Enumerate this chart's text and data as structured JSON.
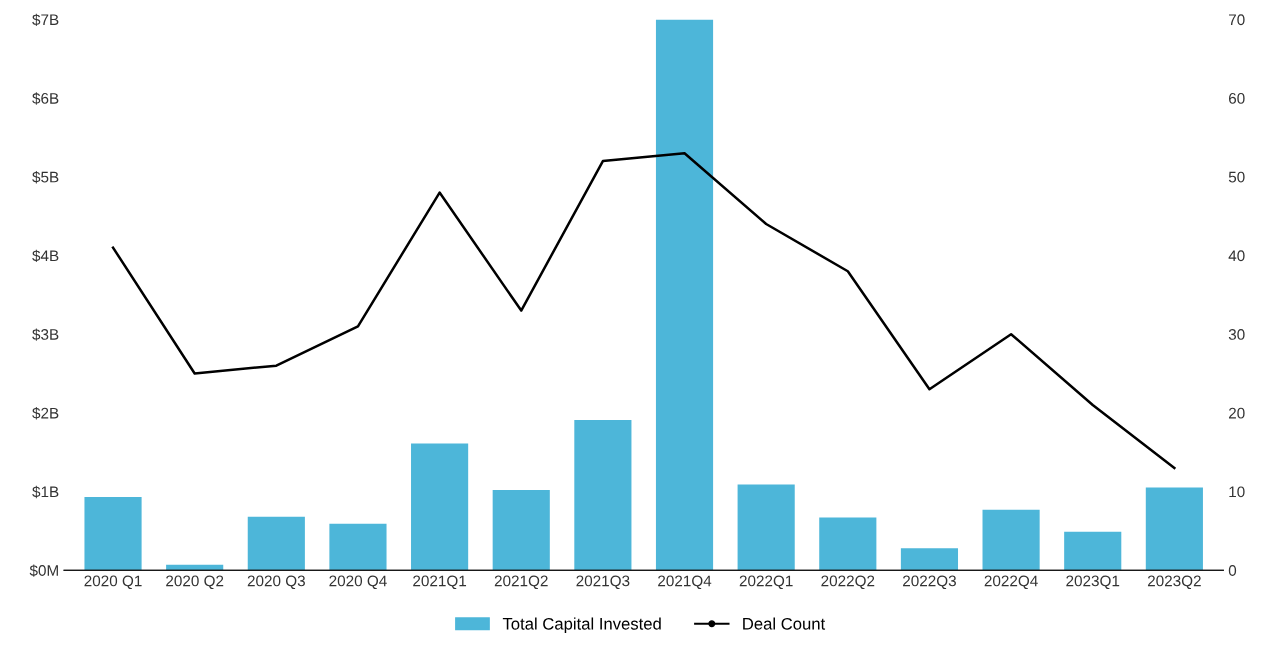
{
  "chart_data": {
    "type": "bar",
    "categories": [
      "2020 Q1",
      "2020 Q2",
      "2020 Q3",
      "2020 Q4",
      "2021Q1",
      "2021Q2",
      "2021Q3",
      "2021Q4",
      "2022Q1",
      "2022Q2",
      "2022Q3",
      "2022Q4",
      "2023Q1",
      "2023Q2"
    ],
    "series": [
      {
        "name": "Total Capital Invested",
        "color": "#4db6d9",
        "values": [
          0.93,
          0.07,
          0.68,
          0.59,
          1.61,
          1.02,
          1.91,
          7.0,
          1.09,
          0.67,
          0.28,
          0.77,
          0.49,
          1.05
        ]
      },
      {
        "name": "Deal Count",
        "type": "line",
        "axis": "y2",
        "color": "#000000",
        "values": [
          41,
          25,
          26,
          31,
          48,
          33,
          52,
          53,
          44,
          38,
          23,
          30,
          21,
          13
        ]
      }
    ],
    "ylim": [
      0,
      7
    ],
    "yticks": [
      {
        "value": 0,
        "label": "$0M"
      },
      {
        "value": 1,
        "label": "$1B"
      },
      {
        "value": 2,
        "label": "$2B"
      },
      {
        "value": 3,
        "label": "$3B"
      },
      {
        "value": 4,
        "label": "$4B"
      },
      {
        "value": 5,
        "label": "$5B"
      },
      {
        "value": 6,
        "label": "$6B"
      },
      {
        "value": 7,
        "label": "$7B"
      }
    ],
    "y2lim": [
      0,
      70
    ],
    "y2ticks": [
      0,
      10,
      20,
      30,
      40,
      50,
      60,
      70
    ],
    "grid": false,
    "legend": "bottom",
    "marker": "none",
    "line_style": "solid"
  }
}
